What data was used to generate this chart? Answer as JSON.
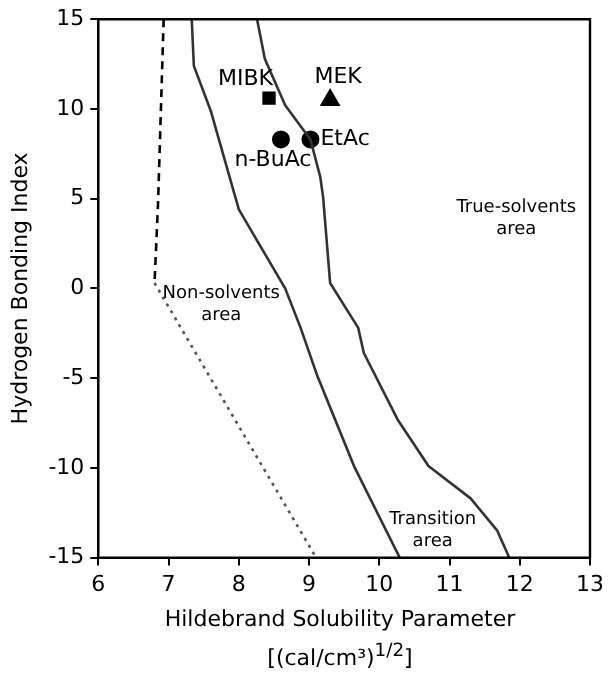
{
  "chart_data": {
    "type": "line",
    "xlabel": "Hildebrand Solubility Parameter [(cal/cm³)$^{1/2}$]",
    "ylabel": "Hydrogen Bonding Index",
    "xlim": [
      6,
      13
    ],
    "xticks": [
      6,
      7,
      8,
      9,
      10,
      11,
      12,
      13
    ],
    "ylim": [
      -15,
      15
    ],
    "yticks": [
      -15,
      -10,
      -5,
      0,
      5,
      10,
      15
    ],
    "grid": false,
    "legend": false,
    "series": [
      {
        "color": "#000000",
        "line_style": "dashed",
        "x": [
          6.93,
          6.85,
          6.8
        ],
        "values": [
          15,
          4.7,
          0.3
        ]
      },
      {
        "color": "#555555",
        "line_style": "dotted",
        "x": [
          6.8,
          9.1
        ],
        "values": [
          0.3,
          -15
        ]
      },
      {
        "color": "#333333",
        "line_style": "solid",
        "x": [
          7.33,
          7.36,
          7.6,
          8.0,
          8.66,
          8.88,
          9.12,
          9.64,
          10.29
        ],
        "values": [
          15,
          12.4,
          9.9,
          4.4,
          0,
          -2.2,
          -4.9,
          -9.9,
          -15
        ]
      },
      {
        "color": "#333333",
        "line_style": "solid",
        "x": [
          8.26,
          8.37,
          8.66,
          9.02,
          9.16,
          9.2,
          9.3,
          9.7,
          9.78,
          10.26,
          10.7,
          11.3,
          11.68,
          11.85
        ],
        "values": [
          15,
          12.8,
          10.2,
          8.3,
          6.2,
          5.1,
          0.3,
          -2.2,
          -3.6,
          -7.3,
          -9.9,
          -11.7,
          -13.5,
          -15
        ]
      },
      {
        "type": "scatter",
        "name": "MIBK",
        "color": "#000000",
        "marker": "square",
        "x": [
          8.43
        ],
        "values": [
          10.6
        ]
      },
      {
        "type": "scatter",
        "name": "MEK",
        "color": "#000000",
        "marker": "triangle",
        "x": [
          9.3
        ],
        "values": [
          10.5
        ]
      },
      {
        "type": "scatter",
        "name": "n-BuAc",
        "color": "#000000",
        "marker": "circle",
        "x": [
          8.6
        ],
        "values": [
          8.3
        ]
      },
      {
        "type": "scatter",
        "name": "EtAc",
        "color": "#000000",
        "marker": "circle",
        "x": [
          9.02
        ],
        "values": [
          8.3
        ]
      }
    ],
    "annotations": [
      "True-solvents area",
      "Non-solvents area",
      "Transition area"
    ]
  }
}
